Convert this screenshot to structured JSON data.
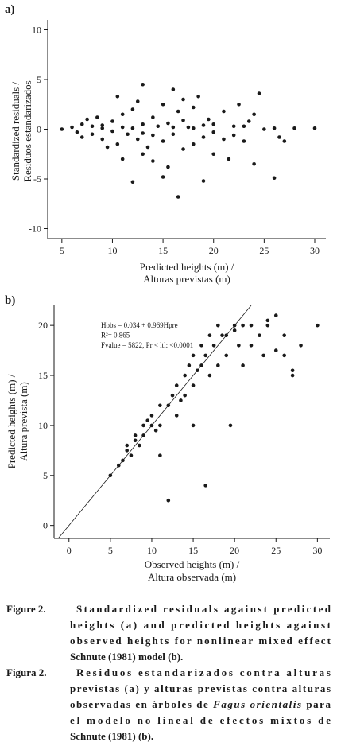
{
  "chart_data": [
    {
      "type": "scatter",
      "panel_label": "a)",
      "x_label": [
        "Predicted heights (m) /",
        "Alturas previstas (m)"
      ],
      "y_label": [
        "Standardized residuals /",
        "Residuos estandarizados"
      ],
      "x": [
        5,
        6,
        6.5,
        7,
        7,
        7.5,
        8,
        8,
        8.5,
        9,
        9,
        9.5,
        10,
        10,
        10.5,
        10.5,
        11,
        11,
        11.5,
        12,
        12,
        12.5,
        12.5,
        13,
        13,
        13,
        13.5,
        14,
        14,
        14.5,
        15,
        15,
        15,
        15.5,
        15.5,
        16,
        16,
        16.5,
        16.5,
        17,
        17,
        17.5,
        18,
        18,
        18.5,
        19,
        19,
        19.5,
        20,
        20,
        21,
        21,
        21.5,
        22,
        22.5,
        23,
        23.5,
        24,
        24,
        24.5,
        25,
        26,
        26,
        26.5,
        27,
        28,
        30,
        12,
        14,
        16,
        18,
        20,
        17,
        13,
        19,
        22,
        11,
        9,
        23
      ],
      "y": [
        0,
        0.2,
        -0.3,
        0.5,
        -0.8,
        1,
        -0.5,
        0.3,
        1.2,
        -1,
        0.4,
        -1.8,
        0.8,
        -0.2,
        3.3,
        -1.5,
        1.5,
        -3,
        -0.5,
        2,
        -5.3,
        2.8,
        -1,
        4.5,
        0.5,
        -2.5,
        -1.8,
        1.2,
        -3.2,
        0.3,
        2.5,
        -1.2,
        -4.8,
        0.6,
        -3.8,
        4,
        -0.5,
        -6.8,
        1.8,
        -2,
        3,
        0.2,
        -1.5,
        2.2,
        3.3,
        -0.8,
        -5.2,
        1,
        -2.5,
        0.5,
        1.8,
        -1,
        -3,
        0.3,
        2.5,
        -1.2,
        0.8,
        -3.5,
        1.5,
        3.6,
        0,
        -4.9,
        0.1,
        -0.8,
        -1.2,
        0.1,
        0.1,
        0.1,
        -0.6,
        0.2,
        0.1,
        -0.3,
        0.9,
        -0.4,
        0.4,
        -0.6,
        0.2,
        0.1,
        0.3
      ],
      "color": "#1a1a1a",
      "xlim": [
        3.6,
        31.1
      ],
      "xticks": [
        5,
        10,
        15,
        20,
        25,
        30
      ],
      "ylim": [
        -11,
        11
      ],
      "yticks": [
        -10,
        -5,
        0,
        5,
        10
      ]
    },
    {
      "type": "scatter",
      "panel_label": "b)",
      "x_label": [
        "Observed heights (m) /",
        "Altura observada (m)"
      ],
      "y_label": [
        "Predicted heights (m) /",
        "Altura prevista (m)"
      ],
      "annotations": [
        "Hobs = 0.034 + 0.969Hpre",
        "R²= 0.865",
        "Fvalue = 5822, Pr < ltl: <0.0001"
      ],
      "identity_line": true,
      "x": [
        5,
        6,
        6.5,
        7,
        7,
        7.5,
        8,
        8,
        8.5,
        9,
        9,
        9.5,
        10,
        10,
        10.5,
        11,
        11,
        11,
        12,
        12,
        12.5,
        13,
        13,
        13.5,
        14,
        14,
        14.5,
        15,
        15,
        15,
        15.5,
        16,
        16,
        16.5,
        16.5,
        17,
        17,
        17.5,
        18,
        18,
        18.5,
        19,
        19,
        19.5,
        20,
        20,
        20.5,
        21,
        21,
        22,
        22,
        23,
        23.5,
        24,
        24,
        25,
        25,
        26,
        26,
        27,
        27,
        28,
        30
      ],
      "y": [
        5,
        6,
        6.5,
        7.5,
        8,
        7,
        8.5,
        9,
        8,
        10,
        9,
        10.5,
        10,
        11,
        9.5,
        12,
        10,
        7,
        2.5,
        12,
        13,
        11,
        14,
        12.5,
        15,
        13,
        16,
        14,
        17,
        10,
        15.5,
        18,
        16,
        4,
        17,
        15,
        19,
        18,
        20,
        16,
        19,
        19,
        17,
        10,
        20,
        19.5,
        18,
        20,
        16,
        20,
        18,
        19,
        17,
        20.5,
        20,
        17.5,
        21,
        17,
        19,
        15,
        15.5,
        18,
        20
      ],
      "color": "#1a1a1a",
      "xlim": [
        -1.8,
        31.5
      ],
      "xticks": [
        0,
        5,
        10,
        15,
        20,
        25,
        30
      ],
      "ylim": [
        -1.3,
        22
      ],
      "yticks": [
        0,
        5,
        10,
        15,
        20
      ]
    }
  ],
  "caption": {
    "en": {
      "label": "Figure 2.",
      "lines": [
        "Standardized residuals against predicted",
        "heights (a) and predicted heights against",
        "observed heights for nonlinear mixed effect",
        "Schnute (1981) model (b)."
      ]
    },
    "es": {
      "label": "Figura 2.",
      "lines": [
        "Residuos estandarizados contra alturas",
        "previstas (a) y alturas previstas contra alturas",
        [
          "observadas en árboles de ",
          "Fagus orientalis",
          " para"
        ],
        "el modelo no lineal de efectos mixtos de",
        "Schnute (1981) (b)."
      ]
    }
  }
}
